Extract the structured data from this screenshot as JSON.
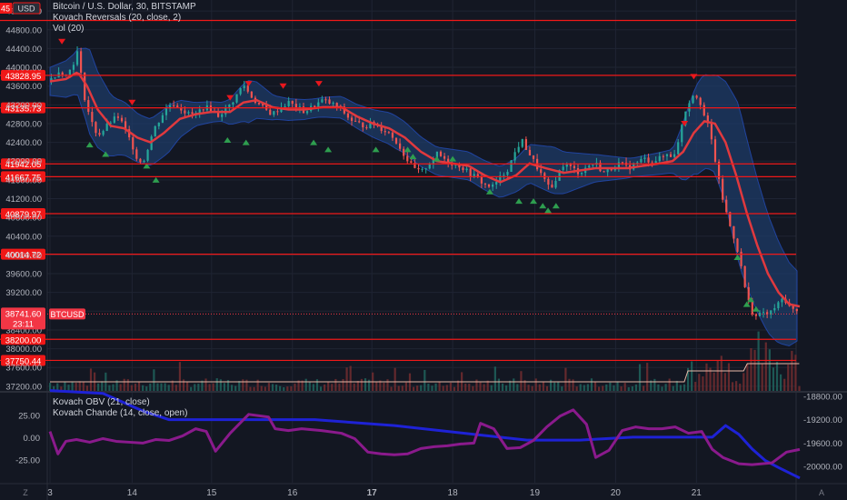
{
  "legend": {
    "symbol": "Bitcoin / U.S. Dollar, 30, BITSTAMP",
    "indicator1": "Kovach Reversals (20, close, 2)",
    "indicator2": "Vol (20)",
    "indicator3": "Kovach OBV (21, close)",
    "indicator4": "Kovach Chande (14, close, open)"
  },
  "price_badges": {
    "top_left": "45",
    "currency": "USD",
    "current_price": "38741.60",
    "countdown": "23:11",
    "ticker": "BTCUSD"
  },
  "footer": {
    "timezone_btn": "Z",
    "auto_btn": "A"
  },
  "colors": {
    "background": "#131722",
    "grid": "#1f2433",
    "up": "#26a69a",
    "down": "#ef5350",
    "ma": "#e0393e",
    "band_fill": "#1e3d6b",
    "band_edge": "#2962ff",
    "level_line": "#f01818",
    "obv": "#1e22d6",
    "chande": "#8a1a8c",
    "volume_ma": "#e8b8a8"
  },
  "chart_data": {
    "type": "candlestick",
    "symbol": "BTCUSD",
    "interval": "30",
    "exchange": "BITSTAMP",
    "x_tick_labels": [
      "3",
      "14",
      "15",
      "16",
      "17",
      "18",
      "19",
      "20",
      "21"
    ],
    "y_tick_labels": [
      "45200.00",
      "44800.00",
      "44400.00",
      "44000.00",
      "43600.00",
      "43200.00",
      "42800.00",
      "42400.00",
      "42000.00",
      "41600.00",
      "41200.00",
      "40800.00",
      "40400.00",
      "40000.00",
      "39600.00",
      "39200.00",
      "38800.00",
      "38400.00",
      "38000.00",
      "37600.00",
      "37200.00"
    ],
    "ylim": [
      37100,
      45300
    ],
    "horizontal_levels": [
      "45000.00",
      "43828.95",
      "43135.73",
      "41942.05",
      "41667.75",
      "40879.97",
      "40014.72",
      "38200.00",
      "37750.44"
    ],
    "price_path": [
      [
        0,
        43700
      ],
      [
        4,
        43850
      ],
      [
        8,
        43950
      ],
      [
        12,
        43800
      ],
      [
        17,
        44050
      ],
      [
        21,
        44350
      ],
      [
        25,
        43500
      ],
      [
        28,
        43150
      ],
      [
        31,
        42850
      ],
      [
        36,
        42550
      ],
      [
        40,
        42650
      ],
      [
        46,
        42850
      ],
      [
        52,
        42950
      ],
      [
        56,
        42700
      ],
      [
        62,
        42350
      ],
      [
        66,
        42050
      ],
      [
        70,
        41950
      ],
      [
        74,
        42300
      ],
      [
        78,
        42650
      ],
      [
        82,
        42850
      ],
      [
        86,
        43050
      ],
      [
        92,
        43250
      ],
      [
        98,
        43150
      ],
      [
        104,
        43000
      ],
      [
        110,
        43000
      ],
      [
        116,
        43150
      ],
      [
        122,
        43100
      ],
      [
        126,
        42950
      ],
      [
        130,
        43050
      ],
      [
        136,
        43200
      ],
      [
        142,
        43450
      ],
      [
        146,
        43650
      ],
      [
        150,
        43450
      ],
      [
        156,
        43250
      ],
      [
        162,
        43100
      ],
      [
        168,
        43000
      ],
      [
        174,
        43150
      ],
      [
        180,
        43250
      ],
      [
        186,
        43150
      ],
      [
        192,
        43050
      ],
      [
        198,
        43150
      ],
      [
        206,
        43300
      ],
      [
        214,
        43200
      ],
      [
        220,
        43100
      ],
      [
        226,
        42900
      ],
      [
        232,
        42800
      ],
      [
        238,
        42750
      ],
      [
        244,
        42800
      ],
      [
        250,
        42700
      ],
      [
        256,
        42600
      ],
      [
        262,
        42400
      ],
      [
        268,
        42100
      ],
      [
        274,
        41850
      ],
      [
        280,
        41750
      ],
      [
        286,
        41950
      ],
      [
        292,
        42150
      ],
      [
        298,
        42050
      ],
      [
        304,
        41950
      ],
      [
        310,
        41900
      ],
      [
        316,
        41750
      ],
      [
        322,
        41650
      ],
      [
        328,
        41500
      ],
      [
        334,
        41450
      ],
      [
        340,
        41650
      ],
      [
        346,
        41850
      ],
      [
        352,
        42250
      ],
      [
        356,
        42450
      ],
      [
        362,
        42150
      ],
      [
        368,
        41850
      ],
      [
        374,
        41550
      ],
      [
        378,
        41350
      ],
      [
        382,
        41650
      ],
      [
        388,
        41950
      ],
      [
        394,
        41850
      ],
      [
        400,
        41750
      ],
      [
        406,
        41900
      ],
      [
        412,
        41950
      ],
      [
        418,
        41750
      ],
      [
        424,
        41850
      ],
      [
        430,
        41950
      ],
      [
        436,
        41850
      ],
      [
        442,
        41950
      ],
      [
        448,
        42050
      ],
      [
        454,
        42000
      ],
      [
        460,
        42050
      ],
      [
        466,
        42150
      ],
      [
        470,
        42100
      ],
      [
        474,
        42350
      ],
      [
        478,
        42950
      ],
      [
        482,
        43250
      ],
      [
        486,
        43450
      ],
      [
        490,
        43350
      ],
      [
        494,
        42950
      ],
      [
        498,
        42650
      ],
      [
        502,
        42050
      ],
      [
        506,
        41400
      ],
      [
        510,
        40950
      ],
      [
        514,
        40550
      ],
      [
        518,
        40250
      ],
      [
        522,
        39700
      ],
      [
        526,
        39100
      ],
      [
        530,
        38800
      ],
      [
        534,
        38650
      ],
      [
        538,
        38800
      ],
      [
        542,
        38700
      ],
      [
        546,
        38850
      ],
      [
        550,
        38950
      ],
      [
        554,
        39100
      ],
      [
        558,
        38900
      ],
      [
        562,
        38800
      ],
      [
        566,
        38741.6
      ]
    ],
    "ma_path": [
      [
        0,
        43700
      ],
      [
        12,
        43750
      ],
      [
        21,
        43900
      ],
      [
        28,
        43600
      ],
      [
        36,
        43100
      ],
      [
        46,
        42750
      ],
      [
        56,
        42700
      ],
      [
        66,
        42500
      ],
      [
        76,
        42400
      ],
      [
        86,
        42600
      ],
      [
        98,
        42900
      ],
      [
        110,
        43000
      ],
      [
        122,
        43050
      ],
      [
        136,
        43050
      ],
      [
        146,
        43250
      ],
      [
        156,
        43300
      ],
      [
        168,
        43150
      ],
      [
        180,
        43100
      ],
      [
        192,
        43100
      ],
      [
        206,
        43150
      ],
      [
        220,
        43150
      ],
      [
        232,
        42950
      ],
      [
        244,
        42800
      ],
      [
        256,
        42700
      ],
      [
        268,
        42500
      ],
      [
        280,
        42200
      ],
      [
        292,
        42000
      ],
      [
        304,
        41950
      ],
      [
        316,
        41900
      ],
      [
        328,
        41700
      ],
      [
        340,
        41550
      ],
      [
        352,
        41700
      ],
      [
        362,
        41950
      ],
      [
        374,
        41850
      ],
      [
        388,
        41750
      ],
      [
        400,
        41800
      ],
      [
        412,
        41850
      ],
      [
        424,
        41850
      ],
      [
        436,
        41850
      ],
      [
        448,
        41900
      ],
      [
        460,
        41950
      ],
      [
        470,
        42000
      ],
      [
        478,
        42200
      ],
      [
        486,
        42600
      ],
      [
        494,
        42850
      ],
      [
        502,
        42800
      ],
      [
        510,
        42400
      ],
      [
        518,
        41700
      ],
      [
        526,
        40900
      ],
      [
        534,
        40200
      ],
      [
        542,
        39600
      ],
      [
        550,
        39200
      ],
      [
        558,
        38950
      ],
      [
        566,
        38900
      ]
    ],
    "band_halfwidth_path": [
      [
        0,
        300
      ],
      [
        20,
        450
      ],
      [
        30,
        900
      ],
      [
        50,
        600
      ],
      [
        70,
        500
      ],
      [
        90,
        500
      ],
      [
        110,
        250
      ],
      [
        130,
        200
      ],
      [
        150,
        450
      ],
      [
        170,
        250
      ],
      [
        200,
        200
      ],
      [
        230,
        250
      ],
      [
        260,
        350
      ],
      [
        290,
        300
      ],
      [
        320,
        300
      ],
      [
        350,
        350
      ],
      [
        380,
        500
      ],
      [
        410,
        300
      ],
      [
        440,
        200
      ],
      [
        470,
        250
      ],
      [
        480,
        700
      ],
      [
        490,
        1000
      ],
      [
        500,
        1000
      ],
      [
        510,
        1300
      ],
      [
        520,
        1700
      ],
      [
        530,
        1500
      ],
      [
        545,
        1200
      ],
      [
        566,
        700
      ]
    ],
    "reversal_down_markers": [
      [
        9,
        44550
      ],
      [
        62,
        43250
      ],
      [
        136,
        43350
      ],
      [
        150,
        43650
      ],
      [
        176,
        43600
      ],
      [
        203,
        43650
      ],
      [
        486,
        43800
      ],
      [
        479,
        42800
      ]
    ],
    "reversal_up_markers": [
      [
        30,
        42350
      ],
      [
        42,
        42150
      ],
      [
        73,
        41900
      ],
      [
        80,
        41600
      ],
      [
        134,
        42450
      ],
      [
        148,
        42400
      ],
      [
        199,
        42400
      ],
      [
        210,
        42250
      ],
      [
        246,
        42250
      ],
      [
        270,
        42250
      ],
      [
        274,
        42100
      ],
      [
        292,
        42050
      ],
      [
        304,
        42050
      ],
      [
        332,
        41350
      ],
      [
        354,
        41150
      ],
      [
        365,
        41150
      ],
      [
        372,
        41050
      ],
      [
        376,
        40950
      ],
      [
        382,
        41050
      ],
      [
        533,
        38850
      ],
      [
        519,
        39950
      ],
      [
        526,
        38950
      ],
      [
        529,
        39050
      ]
    ],
    "volume": {
      "label": "Vol (20)",
      "approx_bars": 200,
      "spikes_near_end": true
    },
    "lower_pane": {
      "y_tick_labels_left": [
        "25.00",
        "0.00",
        "-25.00"
      ],
      "ylim_left": [
        -42,
        42
      ],
      "y_tick_labels_right": [
        "-18800.00",
        "-19200.00",
        "-19600.00",
        "-20000.00"
      ],
      "series": [
        {
          "name": "Kovach OBV (21, close)",
          "axis": "right",
          "values": [
            [
              0,
              -18700
            ],
            [
              40,
              -18750
            ],
            [
              70,
              -19050
            ],
            [
              90,
              -19200
            ],
            [
              130,
              -19200
            ],
            [
              200,
              -19200
            ],
            [
              260,
              -19300
            ],
            [
              320,
              -19450
            ],
            [
              360,
              -19550
            ],
            [
              400,
              -19550
            ],
            [
              440,
              -19500
            ],
            [
              480,
              -19500
            ],
            [
              500,
              -19500
            ],
            [
              510,
              -19300
            ],
            [
              520,
              -19450
            ],
            [
              530,
              -19700
            ],
            [
              540,
              -19900
            ],
            [
              550,
              -20020
            ],
            [
              566,
              -20200
            ]
          ]
        },
        {
          "name": "Kovach Chande (14, close, open)",
          "axis": "left",
          "values": [
            [
              0,
              7
            ],
            [
              6,
              -18
            ],
            [
              12,
              -4
            ],
            [
              20,
              -2
            ],
            [
              30,
              -5
            ],
            [
              40,
              -1
            ],
            [
              50,
              -4
            ],
            [
              60,
              -5
            ],
            [
              70,
              -6
            ],
            [
              80,
              -2
            ],
            [
              90,
              -3
            ],
            [
              100,
              2
            ],
            [
              110,
              10
            ],
            [
              118,
              7
            ],
            [
              125,
              -15
            ],
            [
              136,
              5
            ],
            [
              150,
              26
            ],
            [
              165,
              23
            ],
            [
              170,
              10
            ],
            [
              180,
              8
            ],
            [
              190,
              10
            ],
            [
              205,
              8
            ],
            [
              220,
              5
            ],
            [
              230,
              -1
            ],
            [
              240,
              -16
            ],
            [
              250,
              -18
            ],
            [
              260,
              -19
            ],
            [
              270,
              -18
            ],
            [
              280,
              -12
            ],
            [
              290,
              -10
            ],
            [
              300,
              -9
            ],
            [
              310,
              -7
            ],
            [
              320,
              -6
            ],
            [
              325,
              16
            ],
            [
              335,
              10
            ],
            [
              345,
              -12
            ],
            [
              355,
              -11
            ],
            [
              365,
              -3
            ],
            [
              375,
              12
            ],
            [
              385,
              24
            ],
            [
              395,
              31
            ],
            [
              405,
              15
            ],
            [
              412,
              -22
            ],
            [
              422,
              -14
            ],
            [
              432,
              8
            ],
            [
              442,
              12
            ],
            [
              452,
              10
            ],
            [
              462,
              10
            ],
            [
              472,
              12
            ],
            [
              482,
              5
            ],
            [
              492,
              7
            ],
            [
              500,
              -13
            ],
            [
              508,
              -22
            ],
            [
              520,
              -29
            ],
            [
              530,
              -30
            ],
            [
              545,
              -28
            ],
            [
              556,
              -16
            ],
            [
              566,
              -13
            ]
          ]
        }
      ]
    }
  }
}
